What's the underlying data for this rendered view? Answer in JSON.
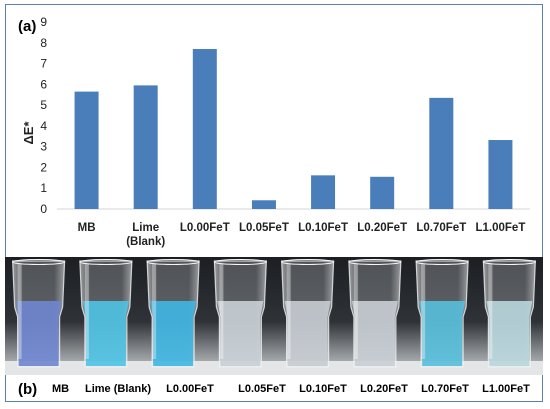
{
  "panel_a_label": "(a)",
  "panel_b_label": "(b)",
  "chart_data": {
    "type": "bar",
    "categories": [
      "MB",
      "Lime\n(Blank)",
      "L0.00FeT",
      "L0.05FeT",
      "L0.10FeT",
      "L0.20FeT",
      "L0.70FeT",
      "L1.00FeT"
    ],
    "values": [
      5.65,
      5.95,
      7.7,
      0.42,
      1.62,
      1.55,
      5.35,
      3.32
    ],
    "title": "",
    "xlabel": "",
    "ylabel": "ΔE*",
    "ylim": [
      0,
      9
    ],
    "yticks": [
      0,
      1,
      2,
      3,
      4,
      5,
      6,
      7,
      8,
      9
    ],
    "grid": false,
    "bar_color": "#4a7ebb"
  },
  "photo": {
    "labels": [
      "MB",
      "Lime (Blank)",
      "L0.00FeT",
      "L0.05FeT",
      "L0.10FeT",
      "L0.20FeT",
      "L0.70FeT",
      "L1.00FeT"
    ],
    "liquid_colors": [
      "#6f86cf",
      "#4fc3e4",
      "#3fb6e2",
      "#c9d0d6",
      "#c6ccd2",
      "#c8ced4",
      "#58bfdc",
      "#b9d7dd"
    ]
  }
}
